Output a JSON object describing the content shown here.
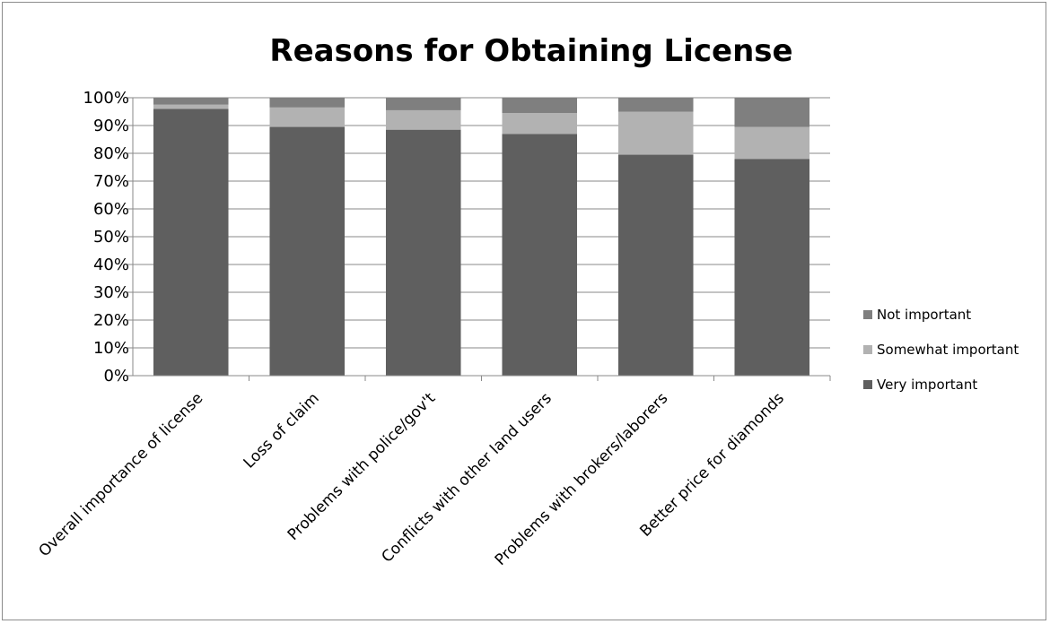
{
  "chart_data": {
    "type": "bar",
    "stacked": true,
    "title": "Reasons for Obtaining License",
    "categories": [
      "Overall importance of license",
      "Loss of claim",
      "Problems with police/gov't",
      "Conflicts with other land users",
      "Problems with brokers/laborers",
      "Better price for diamonds"
    ],
    "series": [
      {
        "name": "Very important",
        "color": "#5f5f5f",
        "values": [
          96,
          89.5,
          88.5,
          87,
          79.5,
          78
        ]
      },
      {
        "name": "Somewhat important",
        "color": "#b2b2b2",
        "values": [
          1.5,
          7,
          7,
          7.5,
          15.5,
          11.5
        ]
      },
      {
        "name": "Not important",
        "color": "#7f7f7f",
        "values": [
          2.5,
          3.5,
          4.5,
          5.5,
          5,
          10.5
        ]
      }
    ],
    "yticks": [
      "0%",
      "10%",
      "20%",
      "30%",
      "40%",
      "50%",
      "60%",
      "70%",
      "80%",
      "90%",
      "100%"
    ],
    "ylim": [
      0,
      100
    ],
    "xlabel": "",
    "ylabel": "",
    "grid": true,
    "legend_position": "right",
    "legend_order": [
      "Not important",
      "Somewhat important",
      "Very important"
    ]
  }
}
